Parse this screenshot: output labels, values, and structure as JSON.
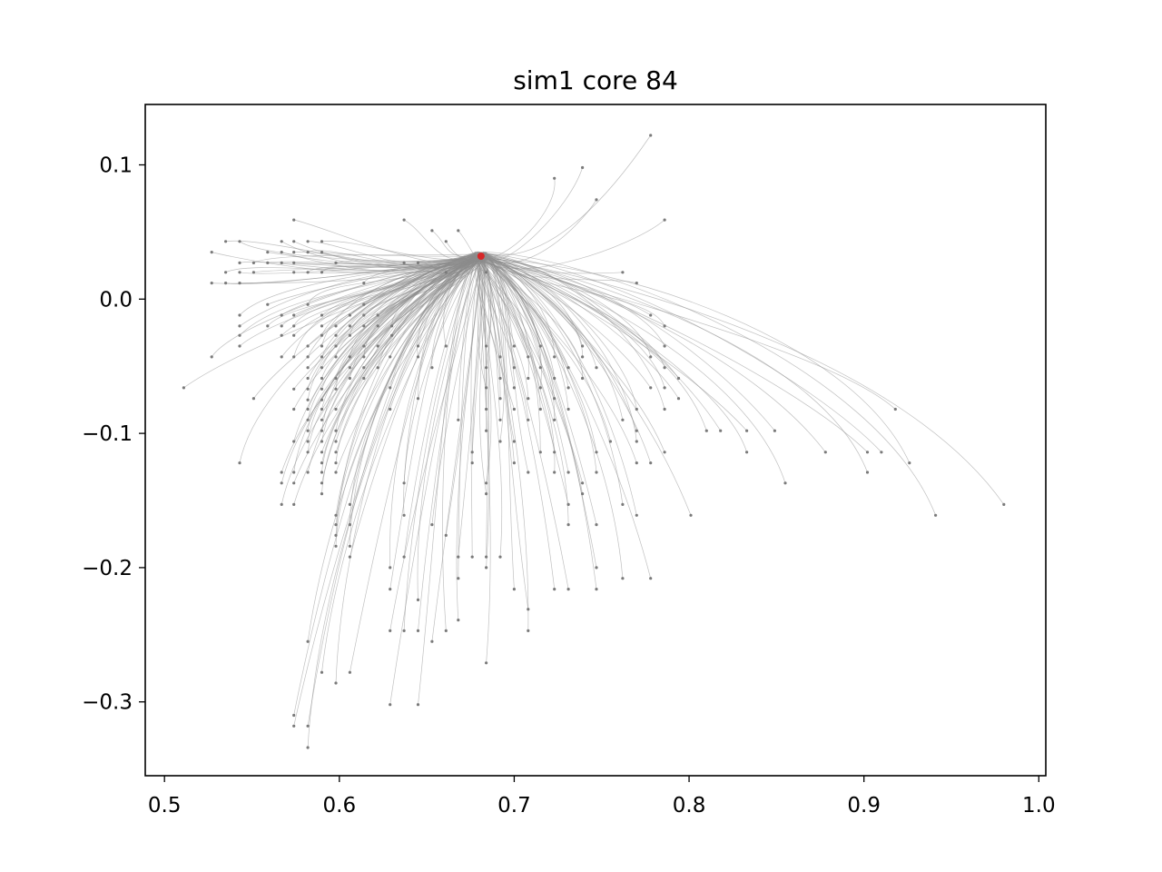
{
  "chart_data": {
    "type": "scatter",
    "title": "sim1 core 84",
    "xlabel": "",
    "ylabel": "",
    "xlim": [
      0.489,
      1.004
    ],
    "ylim": [
      -0.355,
      0.145
    ],
    "x_ticks": [
      0.5,
      0.6,
      0.7,
      0.8,
      0.9,
      1.0
    ],
    "x_tick_labels": [
      "0.5",
      "0.6",
      "0.7",
      "0.8",
      "0.9",
      "1.0"
    ],
    "y_ticks": [
      0.1,
      0.0,
      -0.1,
      -0.2,
      -0.3
    ],
    "y_tick_labels": [
      "0.1",
      "0.0",
      "−0.1",
      "−0.2",
      "−0.3"
    ],
    "grid": false,
    "line_color": "#8c8c8c",
    "point_color": "#7a7a7a",
    "target_color": "#d62728",
    "target": [
      0.681,
      0.032
    ],
    "start_points": [
      [
        0.527,
        0.035
      ],
      [
        0.535,
        0.043
      ],
      [
        0.543,
        0.043
      ],
      [
        0.527,
        0.012
      ],
      [
        0.535,
        0.02
      ],
      [
        0.543,
        0.02
      ],
      [
        0.535,
        0.012
      ],
      [
        0.543,
        0.012
      ],
      [
        0.551,
        0.02
      ],
      [
        0.543,
        0.027
      ],
      [
        0.551,
        0.027
      ],
      [
        0.559,
        0.027
      ],
      [
        0.559,
        0.035
      ],
      [
        0.567,
        0.035
      ],
      [
        0.567,
        0.043
      ],
      [
        0.574,
        0.043
      ],
      [
        0.582,
        0.043
      ],
      [
        0.59,
        0.043
      ],
      [
        0.574,
        0.035
      ],
      [
        0.582,
        0.035
      ],
      [
        0.59,
        0.035
      ],
      [
        0.567,
        0.027
      ],
      [
        0.574,
        0.027
      ],
      [
        0.598,
        0.027
      ],
      [
        0.574,
        0.059
      ],
      [
        0.574,
        0.02
      ],
      [
        0.582,
        0.02
      ],
      [
        0.59,
        0.02
      ],
      [
        0.543,
        -0.012
      ],
      [
        0.543,
        -0.02
      ],
      [
        0.543,
        -0.027
      ],
      [
        0.543,
        -0.035
      ],
      [
        0.527,
        -0.043
      ],
      [
        0.559,
        -0.004
      ],
      [
        0.559,
        -0.02
      ],
      [
        0.567,
        -0.012
      ],
      [
        0.567,
        -0.02
      ],
      [
        0.567,
        -0.027
      ],
      [
        0.574,
        -0.012
      ],
      [
        0.574,
        -0.02
      ],
      [
        0.574,
        -0.027
      ],
      [
        0.582,
        -0.004
      ],
      [
        0.59,
        -0.012
      ],
      [
        0.59,
        -0.02
      ],
      [
        0.59,
        -0.027
      ],
      [
        0.598,
        -0.02
      ],
      [
        0.598,
        -0.027
      ],
      [
        0.606,
        -0.012
      ],
      [
        0.606,
        -0.02
      ],
      [
        0.606,
        -0.027
      ],
      [
        0.614,
        -0.004
      ],
      [
        0.614,
        -0.012
      ],
      [
        0.614,
        -0.02
      ],
      [
        0.622,
        -0.012
      ],
      [
        0.622,
        -0.02
      ],
      [
        0.622,
        -0.035
      ],
      [
        0.63,
        -0.02
      ],
      [
        0.63,
        -0.027
      ],
      [
        0.614,
        0.012
      ],
      [
        0.614,
        -0.035
      ],
      [
        0.598,
        -0.035
      ],
      [
        0.59,
        -0.035
      ],
      [
        0.582,
        -0.035
      ],
      [
        0.574,
        -0.043
      ],
      [
        0.582,
        -0.043
      ],
      [
        0.59,
        -0.043
      ],
      [
        0.598,
        -0.043
      ],
      [
        0.606,
        -0.043
      ],
      [
        0.614,
        -0.043
      ],
      [
        0.567,
        -0.043
      ],
      [
        0.582,
        -0.051
      ],
      [
        0.59,
        -0.051
      ],
      [
        0.606,
        -0.051
      ],
      [
        0.614,
        -0.051
      ],
      [
        0.622,
        -0.051
      ],
      [
        0.582,
        -0.059
      ],
      [
        0.59,
        -0.059
      ],
      [
        0.598,
        -0.059
      ],
      [
        0.614,
        -0.059
      ],
      [
        0.606,
        -0.059
      ],
      [
        0.574,
        -0.067
      ],
      [
        0.582,
        -0.067
      ],
      [
        0.59,
        -0.067
      ],
      [
        0.598,
        -0.067
      ],
      [
        0.582,
        -0.075
      ],
      [
        0.59,
        -0.075
      ],
      [
        0.574,
        -0.082
      ],
      [
        0.582,
        -0.082
      ],
      [
        0.59,
        -0.082
      ],
      [
        0.598,
        -0.082
      ],
      [
        0.582,
        -0.09
      ],
      [
        0.59,
        -0.09
      ],
      [
        0.582,
        -0.098
      ],
      [
        0.59,
        -0.098
      ],
      [
        0.598,
        -0.098
      ],
      [
        0.574,
        -0.106
      ],
      [
        0.582,
        -0.106
      ],
      [
        0.59,
        -0.106
      ],
      [
        0.598,
        -0.106
      ],
      [
        0.582,
        -0.114
      ],
      [
        0.59,
        -0.114
      ],
      [
        0.598,
        -0.114
      ],
      [
        0.59,
        -0.122
      ],
      [
        0.598,
        -0.122
      ],
      [
        0.567,
        -0.129
      ],
      [
        0.574,
        -0.129
      ],
      [
        0.582,
        -0.129
      ],
      [
        0.59,
        -0.129
      ],
      [
        0.598,
        -0.129
      ],
      [
        0.567,
        -0.137
      ],
      [
        0.574,
        -0.137
      ],
      [
        0.59,
        -0.137
      ],
      [
        0.567,
        -0.153
      ],
      [
        0.574,
        -0.153
      ],
      [
        0.59,
        -0.145
      ],
      [
        0.511,
        -0.066
      ],
      [
        0.551,
        -0.074
      ],
      [
        0.543,
        -0.122
      ],
      [
        0.637,
        0.059
      ],
      [
        0.653,
        0.051
      ],
      [
        0.668,
        0.051
      ],
      [
        0.661,
        0.043
      ],
      [
        0.637,
        0.027
      ],
      [
        0.645,
        0.027
      ],
      [
        0.661,
        0.02
      ],
      [
        0.684,
        0.02
      ],
      [
        0.645,
        -0.035
      ],
      [
        0.661,
        -0.035
      ],
      [
        0.629,
        -0.043
      ],
      [
        0.645,
        -0.043
      ],
      [
        0.653,
        -0.051
      ],
      [
        0.629,
        -0.066
      ],
      [
        0.645,
        -0.074
      ],
      [
        0.629,
        -0.082
      ],
      [
        0.684,
        -0.035
      ],
      [
        0.7,
        -0.035
      ],
      [
        0.715,
        -0.035
      ],
      [
        0.739,
        -0.035
      ],
      [
        0.692,
        -0.043
      ],
      [
        0.708,
        -0.043
      ],
      [
        0.723,
        -0.043
      ],
      [
        0.739,
        -0.043
      ],
      [
        0.684,
        -0.051
      ],
      [
        0.7,
        -0.051
      ],
      [
        0.715,
        -0.051
      ],
      [
        0.731,
        -0.051
      ],
      [
        0.747,
        -0.051
      ],
      [
        0.692,
        -0.059
      ],
      [
        0.708,
        -0.059
      ],
      [
        0.723,
        -0.059
      ],
      [
        0.739,
        -0.059
      ],
      [
        0.684,
        -0.066
      ],
      [
        0.7,
        -0.066
      ],
      [
        0.715,
        -0.066
      ],
      [
        0.731,
        -0.066
      ],
      [
        0.692,
        -0.074
      ],
      [
        0.708,
        -0.074
      ],
      [
        0.723,
        -0.074
      ],
      [
        0.7,
        -0.082
      ],
      [
        0.715,
        -0.082
      ],
      [
        0.731,
        -0.082
      ],
      [
        0.692,
        -0.09
      ],
      [
        0.708,
        -0.09
      ],
      [
        0.723,
        -0.09
      ],
      [
        0.684,
        -0.082
      ],
      [
        0.684,
        -0.098
      ],
      [
        0.723,
        0.09
      ],
      [
        0.739,
        0.098
      ],
      [
        0.747,
        0.074
      ],
      [
        0.778,
        0.122
      ],
      [
        0.786,
        0.059
      ],
      [
        0.762,
        0.02
      ],
      [
        0.77,
        0.012
      ],
      [
        0.778,
        -0.012
      ],
      [
        0.786,
        -0.02
      ],
      [
        0.786,
        -0.035
      ],
      [
        0.778,
        -0.043
      ],
      [
        0.786,
        -0.051
      ],
      [
        0.794,
        -0.059
      ],
      [
        0.778,
        -0.066
      ],
      [
        0.786,
        -0.066
      ],
      [
        0.794,
        -0.074
      ],
      [
        0.786,
        -0.082
      ],
      [
        0.77,
        -0.082
      ],
      [
        0.762,
        -0.09
      ],
      [
        0.77,
        -0.098
      ],
      [
        0.755,
        -0.106
      ],
      [
        0.77,
        -0.106
      ],
      [
        0.786,
        -0.114
      ],
      [
        0.747,
        -0.114
      ],
      [
        0.77,
        -0.122
      ],
      [
        0.747,
        -0.129
      ],
      [
        0.739,
        -0.137
      ],
      [
        0.762,
        -0.153
      ],
      [
        0.77,
        -0.161
      ],
      [
        0.801,
        -0.161
      ],
      [
        0.778,
        -0.122
      ],
      [
        0.81,
        -0.098
      ],
      [
        0.818,
        -0.098
      ],
      [
        0.833,
        -0.098
      ],
      [
        0.849,
        -0.098
      ],
      [
        0.833,
        -0.114
      ],
      [
        0.855,
        -0.137
      ],
      [
        0.878,
        -0.114
      ],
      [
        0.902,
        -0.114
      ],
      [
        0.91,
        -0.114
      ],
      [
        0.902,
        -0.129
      ],
      [
        0.926,
        -0.122
      ],
      [
        0.941,
        -0.161
      ],
      [
        0.918,
        -0.082
      ],
      [
        0.98,
        -0.153
      ],
      [
        0.668,
        -0.09
      ],
      [
        0.637,
        -0.137
      ],
      [
        0.676,
        -0.122
      ],
      [
        0.684,
        -0.137
      ],
      [
        0.684,
        -0.145
      ],
      [
        0.7,
        -0.122
      ],
      [
        0.708,
        -0.129
      ],
      [
        0.715,
        -0.114
      ],
      [
        0.723,
        -0.129
      ],
      [
        0.731,
        -0.129
      ],
      [
        0.739,
        -0.145
      ],
      [
        0.731,
        -0.153
      ],
      [
        0.747,
        -0.168
      ],
      [
        0.731,
        -0.168
      ],
      [
        0.692,
        -0.106
      ],
      [
        0.676,
        -0.114
      ],
      [
        0.7,
        -0.106
      ],
      [
        0.637,
        -0.161
      ],
      [
        0.653,
        -0.168
      ],
      [
        0.661,
        -0.176
      ],
      [
        0.629,
        -0.2
      ],
      [
        0.637,
        -0.192
      ],
      [
        0.668,
        -0.192
      ],
      [
        0.676,
        -0.192
      ],
      [
        0.684,
        -0.192
      ],
      [
        0.692,
        -0.192
      ],
      [
        0.684,
        -0.2
      ],
      [
        0.668,
        -0.208
      ],
      [
        0.629,
        -0.216
      ],
      [
        0.645,
        -0.224
      ],
      [
        0.629,
        -0.247
      ],
      [
        0.637,
        -0.247
      ],
      [
        0.645,
        -0.247
      ],
      [
        0.653,
        -0.255
      ],
      [
        0.661,
        -0.247
      ],
      [
        0.668,
        -0.239
      ],
      [
        0.684,
        -0.271
      ],
      [
        0.7,
        -0.216
      ],
      [
        0.708,
        -0.231
      ],
      [
        0.708,
        -0.247
      ],
      [
        0.723,
        -0.216
      ],
      [
        0.731,
        -0.216
      ],
      [
        0.747,
        -0.216
      ],
      [
        0.747,
        -0.2
      ],
      [
        0.762,
        -0.208
      ],
      [
        0.778,
        -0.208
      ],
      [
        0.723,
        -0.114
      ],
      [
        0.606,
        -0.153
      ],
      [
        0.598,
        -0.161
      ],
      [
        0.598,
        -0.168
      ],
      [
        0.606,
        -0.168
      ],
      [
        0.598,
        -0.176
      ],
      [
        0.606,
        -0.184
      ],
      [
        0.598,
        -0.184
      ],
      [
        0.606,
        -0.192
      ],
      [
        0.582,
        -0.255
      ],
      [
        0.59,
        -0.278
      ],
      [
        0.598,
        -0.286
      ],
      [
        0.606,
        -0.278
      ],
      [
        0.574,
        -0.31
      ],
      [
        0.574,
        -0.318
      ],
      [
        0.582,
        -0.318
      ],
      [
        0.582,
        -0.334
      ],
      [
        0.629,
        -0.302
      ],
      [
        0.645,
        -0.302
      ]
    ]
  }
}
